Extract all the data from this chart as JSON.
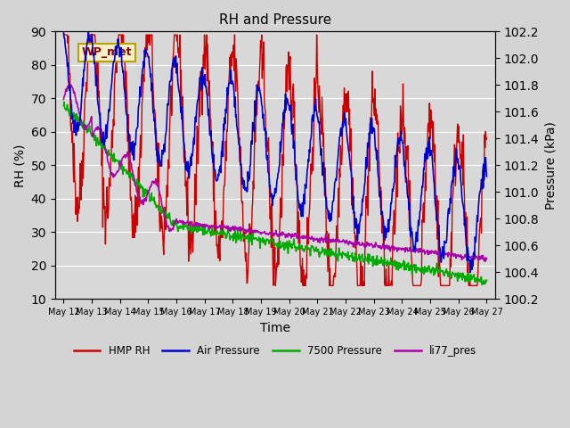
{
  "title": "RH and Pressure",
  "xlabel": "Time",
  "ylabel_left": "RH (%)",
  "ylabel_right": "Pressure (kPa)",
  "ylim_left": [
    10,
    90
  ],
  "ylim_right": [
    100.2,
    102.2
  ],
  "fig_facecolor": "#d4d4d4",
  "ax_facecolor": "#d8d8d8",
  "annotation_text": "WP_met",
  "annotation_bg": "#f5f0c8",
  "annotation_border": "#b8a000",
  "annotation_text_color": "#8b0000",
  "x_tick_labels": [
    "May 12",
    "May 13",
    "May 14",
    "May 15",
    "May 16",
    "May 17",
    "May 18",
    "May 19",
    "May 20",
    "May 21",
    "May 22",
    "May 23",
    "May 24",
    "May 25",
    "May 26",
    "May 27"
  ],
  "colors": {
    "HMP_RH": "#cc0000",
    "Air_Pressure": "#0000cc",
    "Pressure_7500": "#00aa00",
    "li77_pres": "#aa00aa"
  },
  "legend_labels": [
    "HMP RH",
    "Air Pressure",
    "7500 Pressure",
    "li77_pres"
  ],
  "yticks_left": [
    10,
    20,
    30,
    40,
    50,
    60,
    70,
    80,
    90
  ],
  "yticks_right": [
    100.2,
    100.4,
    100.6,
    100.8,
    101.0,
    101.2,
    101.4,
    101.6,
    101.8,
    102.0,
    102.2
  ]
}
